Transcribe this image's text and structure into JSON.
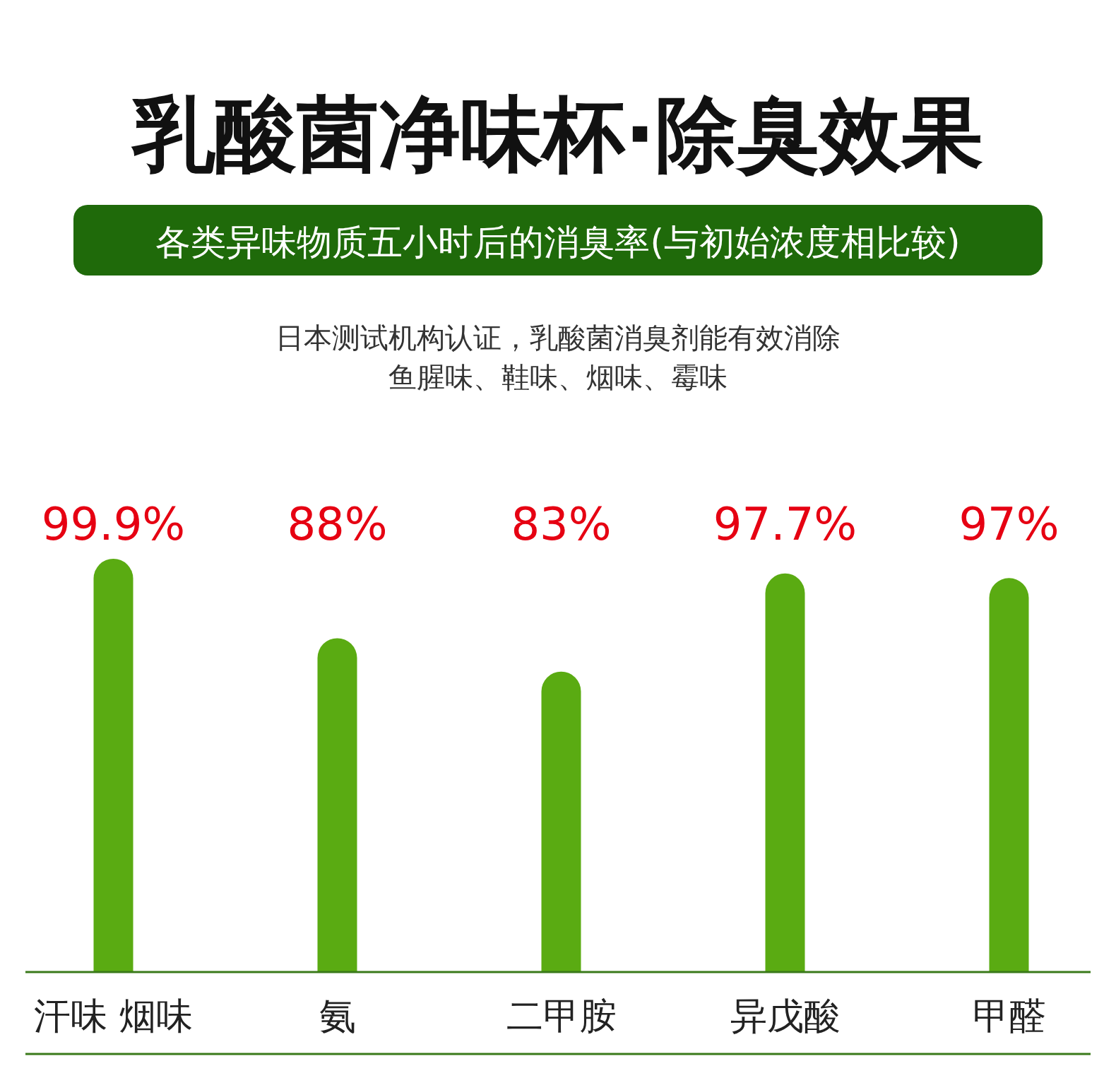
{
  "chart_data": {
    "type": "bar",
    "title": "乳酸菌净味杯·除臭效果",
    "subtitle": "各类异味物质五小时后的消臭率(与初始浓度相比较)",
    "annotations": [
      "日本测试机构认证，乳酸菌消臭剂能有效消除",
      "鱼腥味、鞋味、烟味、霉味"
    ],
    "categories": [
      "汗味 烟味",
      "氨",
      "二甲胺",
      "异戊酸",
      "甲醛"
    ],
    "series": [
      {
        "color": "#5aab12",
        "values": [
          99.9,
          88,
          83,
          97.7,
          97
        ],
        "value_labels": [
          "99.9%",
          "88%",
          "83%",
          "97.7%",
          "97%"
        ]
      }
    ],
    "ylim": [
      38,
      100
    ],
    "tick_labels": "x"
  }
}
